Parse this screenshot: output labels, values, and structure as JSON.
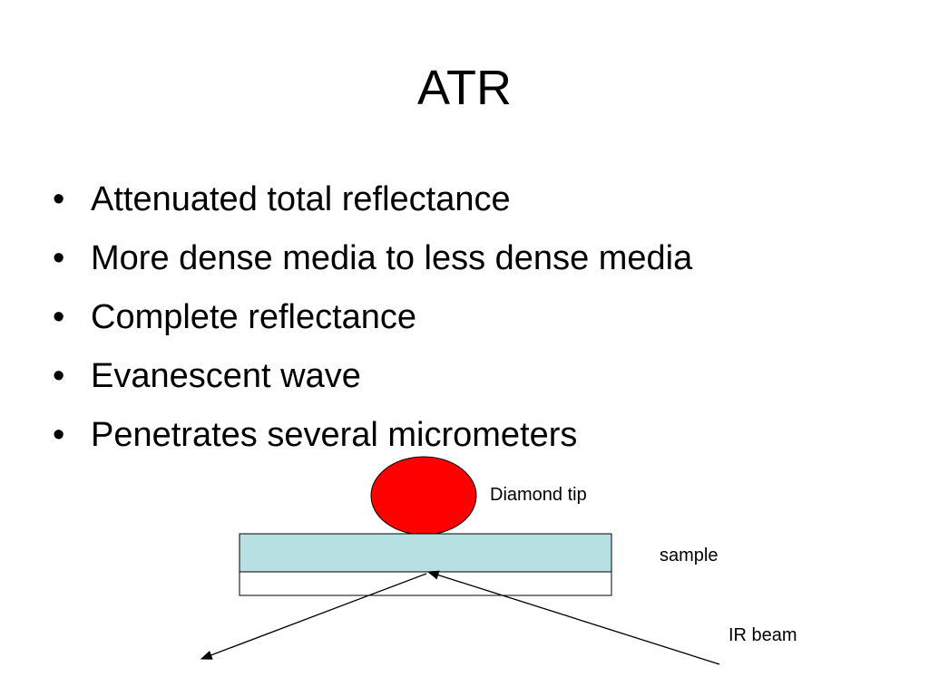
{
  "title": "ATR",
  "bullets": [
    "Attenuated total reflectance",
    "More dense media to less dense media",
    "Complete reflectance",
    "Evanescent wave",
    "Penetrates several micrometers"
  ],
  "diagram": {
    "diamond_label": "Diamond tip",
    "sample_label": "sample",
    "beam_label": "IR beam"
  }
}
